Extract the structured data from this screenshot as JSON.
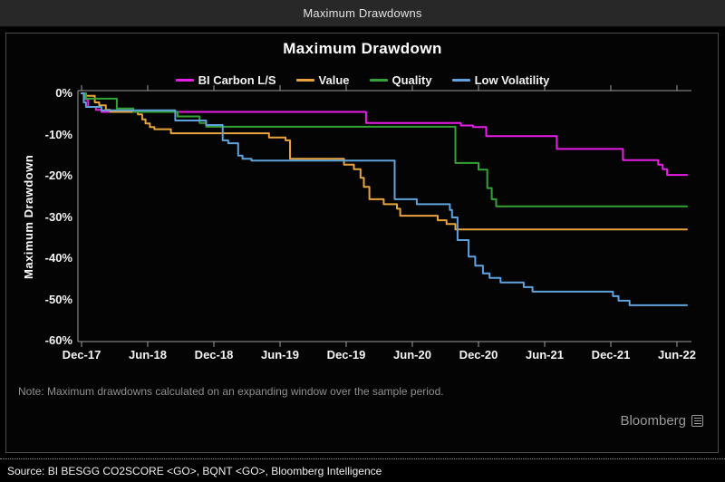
{
  "window": {
    "title": "Maximum Drawdowns"
  },
  "chart": {
    "title": "Maximum Drawdown",
    "y_axis_title": "Maximum Drawdown",
    "note": "Note: Maximum drawdowns calculated on an expanding window over the sample period.",
    "brand": "Bloomberg",
    "source": "Source: BI BESGG CO2SCORE <GO>, BQNT <GO>, Bloomberg Intelligence"
  },
  "chart_data": {
    "type": "line",
    "step": true,
    "title": "Maximum Drawdown",
    "ylabel": "Maximum Drawdown",
    "xlabel": "",
    "x_unit": "months since Dec-2017",
    "ylim": [
      -60,
      0
    ],
    "grid": false,
    "legend_position": "top",
    "y_ticks": [
      "0%",
      "-10%",
      "-20%",
      "-30%",
      "-40%",
      "-50%",
      "-60%"
    ],
    "y_tick_values": [
      0,
      -10,
      -20,
      -30,
      -40,
      -50,
      -60
    ],
    "x_tick_labels": [
      "Dec-17",
      "Jun-18",
      "Dec-18",
      "Jun-19",
      "Dec-19",
      "Jun-20",
      "Dec-20",
      "Jun-21",
      "Dec-21",
      "Jun-22"
    ],
    "x_tick_months": [
      0,
      6,
      12,
      18,
      24,
      30,
      36,
      42,
      48,
      54
    ],
    "x_end_month": 54.9,
    "series": [
      {
        "name": "BI Carbon L/S",
        "color": "#e61ee6",
        "points": [
          [
            0,
            0
          ],
          [
            0.3,
            -1.5
          ],
          [
            0.6,
            -3.3
          ],
          [
            1.3,
            -4.0
          ],
          [
            1.8,
            -4.5
          ],
          [
            25.8,
            -7.2
          ],
          [
            34.4,
            -7.8
          ],
          [
            35.5,
            -8.2
          ],
          [
            36.7,
            -10.4
          ],
          [
            43.1,
            -13.5
          ],
          [
            49.1,
            -16.2
          ],
          [
            52.3,
            -17.3
          ],
          [
            52.7,
            -18.4
          ],
          [
            53.1,
            -19.8
          ]
        ]
      },
      {
        "name": "Value",
        "color": "#e8a33d",
        "points": [
          [
            0,
            0
          ],
          [
            0.4,
            -0.6
          ],
          [
            1.2,
            -2.2
          ],
          [
            1.6,
            -2.9
          ],
          [
            2.2,
            -4.0
          ],
          [
            2.6,
            -4.5
          ],
          [
            5.1,
            -5.1
          ],
          [
            5.5,
            -6.3
          ],
          [
            5.8,
            -7.3
          ],
          [
            6.2,
            -8.2
          ],
          [
            6.6,
            -8.7
          ],
          [
            8.1,
            -9.7
          ],
          [
            17.0,
            -10.7
          ],
          [
            18.5,
            -11.4
          ],
          [
            18.9,
            -15.9
          ],
          [
            23.8,
            -17.3
          ],
          [
            24.7,
            -18.4
          ],
          [
            25.3,
            -20.5
          ],
          [
            25.6,
            -22.7
          ],
          [
            26.1,
            -25.7
          ],
          [
            27.4,
            -26.9
          ],
          [
            28.6,
            -28.0
          ],
          [
            28.9,
            -29.7
          ],
          [
            32.3,
            -30.8
          ],
          [
            33.1,
            -31.7
          ],
          [
            33.9,
            -33.0
          ]
        ]
      },
      {
        "name": "Quality",
        "color": "#33a333",
        "points": [
          [
            0,
            0
          ],
          [
            0.4,
            -1.3
          ],
          [
            3.2,
            -3.7
          ],
          [
            4.7,
            -4.5
          ],
          [
            8.7,
            -5.6
          ],
          [
            10.7,
            -7.2
          ],
          [
            11.3,
            -8.1
          ],
          [
            33.9,
            -16.9
          ],
          [
            36.0,
            -18.5
          ],
          [
            36.8,
            -23.0
          ],
          [
            37.2,
            -25.7
          ],
          [
            37.6,
            -27.4
          ]
        ]
      },
      {
        "name": "Low Volatility",
        "color": "#5fa3dc",
        "points": [
          [
            0,
            0
          ],
          [
            0.2,
            -2.2
          ],
          [
            0.4,
            -3.3
          ],
          [
            1.8,
            -4.1
          ],
          [
            8.5,
            -6.6
          ],
          [
            11.3,
            -7.7
          ],
          [
            12.8,
            -11.4
          ],
          [
            13.3,
            -12.1
          ],
          [
            14.2,
            -15.1
          ],
          [
            14.6,
            -15.9
          ],
          [
            15.4,
            -16.3
          ],
          [
            28.4,
            -25.7
          ],
          [
            30.4,
            -26.9
          ],
          [
            33.4,
            -28.3
          ],
          [
            33.6,
            -30.1
          ],
          [
            34.1,
            -35.6
          ],
          [
            35.1,
            -39.6
          ],
          [
            35.7,
            -41.8
          ],
          [
            36.4,
            -43.7
          ],
          [
            37.0,
            -44.8
          ],
          [
            38.0,
            -45.9
          ],
          [
            40.1,
            -47.0
          ],
          [
            40.9,
            -48.1
          ],
          [
            48.2,
            -49.2
          ],
          [
            48.7,
            -50.3
          ],
          [
            49.7,
            -51.4
          ]
        ]
      }
    ]
  }
}
